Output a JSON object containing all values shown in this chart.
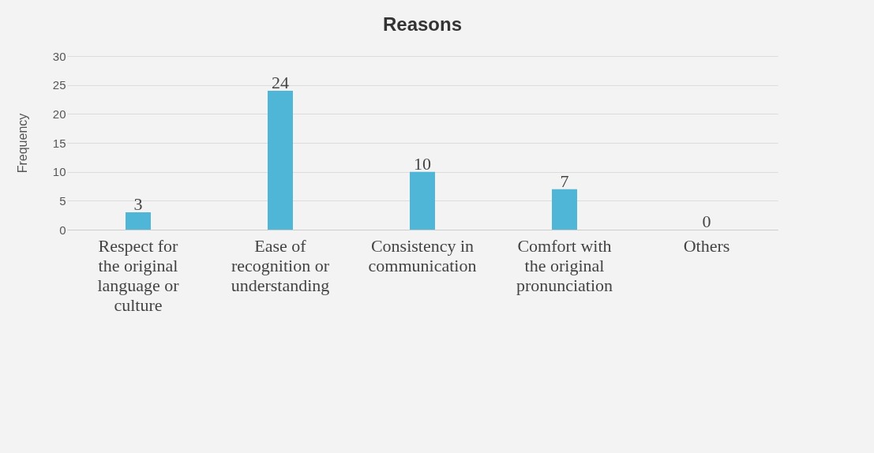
{
  "chart_data": {
    "type": "bar",
    "title": "Reasons",
    "ylabel": "Frequency",
    "categories": [
      "Respect for the original language or culture",
      "Ease of recognition or understanding",
      "Consistency in communication",
      "Comfort with the original pronunciation",
      "Others"
    ],
    "values": [
      3,
      24,
      10,
      7,
      0
    ],
    "color": "#4fb6d8",
    "ylim": [
      0,
      30
    ],
    "yticks": [
      0,
      5,
      10,
      15,
      20,
      25,
      30
    ],
    "grid": "y",
    "data_labels": true
  }
}
